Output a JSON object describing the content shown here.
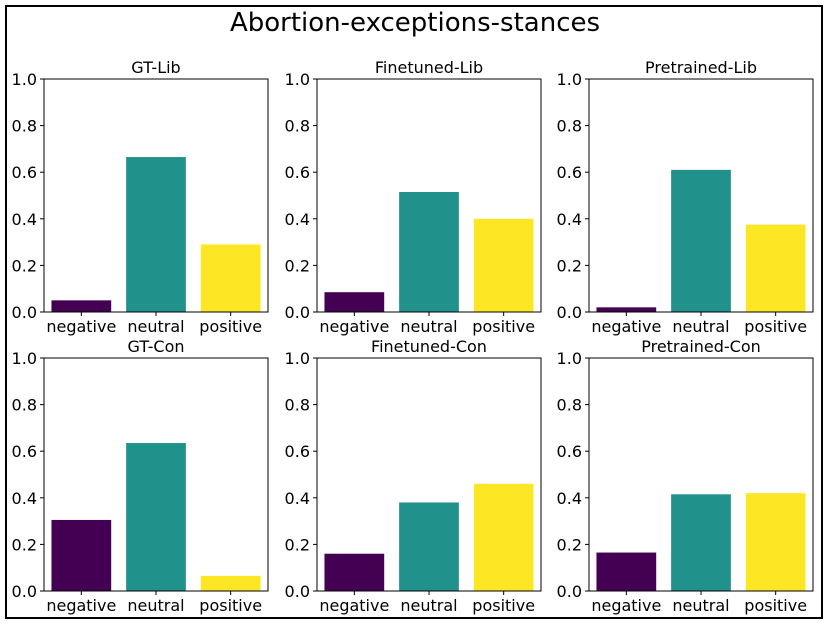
{
  "figure": {
    "title": "Abortion-exceptions-stances"
  },
  "chart_data": [
    {
      "type": "bar",
      "title": "GT-Lib",
      "categories": [
        "negative",
        "neutral",
        "positive"
      ],
      "values": [
        0.05,
        0.665,
        0.29
      ],
      "ylim": [
        0,
        1.0
      ],
      "yticks": [
        "0.0",
        "0.2",
        "0.4",
        "0.6",
        "0.8",
        "1.0"
      ],
      "colors": [
        "#440154",
        "#21918c",
        "#fde725"
      ]
    },
    {
      "type": "bar",
      "title": "Finetuned-Lib",
      "categories": [
        "negative",
        "neutral",
        "positive"
      ],
      "values": [
        0.085,
        0.515,
        0.4
      ],
      "ylim": [
        0,
        1.0
      ],
      "yticks": [
        "0.0",
        "0.2",
        "0.4",
        "0.6",
        "0.8",
        "1.0"
      ],
      "colors": [
        "#440154",
        "#21918c",
        "#fde725"
      ]
    },
    {
      "type": "bar",
      "title": "Pretrained-Lib",
      "categories": [
        "negative",
        "neutral",
        "positive"
      ],
      "values": [
        0.02,
        0.61,
        0.375
      ],
      "ylim": [
        0,
        1.0
      ],
      "yticks": [
        "0.0",
        "0.2",
        "0.4",
        "0.6",
        "0.8",
        "1.0"
      ],
      "colors": [
        "#440154",
        "#21918c",
        "#fde725"
      ]
    },
    {
      "type": "bar",
      "title": "GT-Con",
      "categories": [
        "negative",
        "neutral",
        "positive"
      ],
      "values": [
        0.305,
        0.635,
        0.065
      ],
      "ylim": [
        0,
        1.0
      ],
      "yticks": [
        "0.0",
        "0.2",
        "0.4",
        "0.6",
        "0.8",
        "1.0"
      ],
      "colors": [
        "#440154",
        "#21918c",
        "#fde725"
      ]
    },
    {
      "type": "bar",
      "title": "Finetuned-Con",
      "categories": [
        "negative",
        "neutral",
        "positive"
      ],
      "values": [
        0.16,
        0.38,
        0.46
      ],
      "ylim": [
        0,
        1.0
      ],
      "yticks": [
        "0.0",
        "0.2",
        "0.4",
        "0.6",
        "0.8",
        "1.0"
      ],
      "colors": [
        "#440154",
        "#21918c",
        "#fde725"
      ]
    },
    {
      "type": "bar",
      "title": "Pretrained-Con",
      "categories": [
        "negative",
        "neutral",
        "positive"
      ],
      "values": [
        0.165,
        0.415,
        0.42
      ],
      "ylim": [
        0,
        1.0
      ],
      "yticks": [
        "0.0",
        "0.2",
        "0.4",
        "0.6",
        "0.8",
        "1.0"
      ],
      "colors": [
        "#440154",
        "#21918c",
        "#fde725"
      ]
    }
  ]
}
